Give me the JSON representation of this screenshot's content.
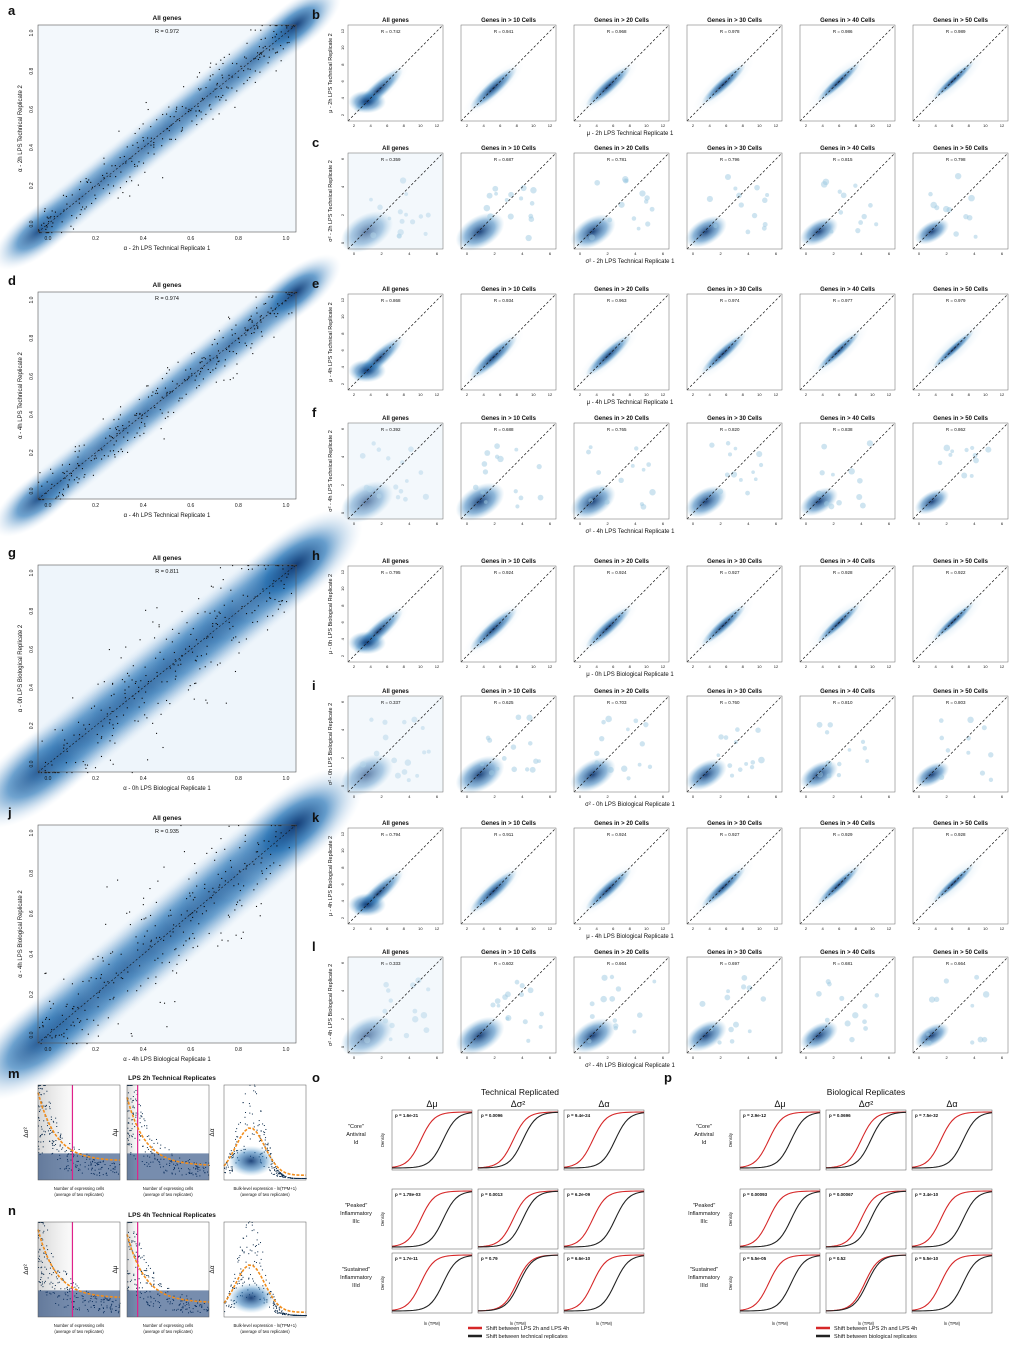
{
  "colors": {
    "density_dark": "#08306b",
    "density_mid": "#2171b5",
    "density_light": "#c6dbef",
    "point": "#0d1b2a",
    "lps_shift": "#d62728",
    "rep_shift": "#222222",
    "cutoff_line": "#e0218a",
    "fit_line": "#f28e1c"
  },
  "chart_data": {
    "type": "scatter",
    "grid": false,
    "panels_left": [
      {
        "label": "a",
        "title": "All genes",
        "r": "R = 0.972",
        "xlabel": "α - 2h LPS Technical Replicate 1",
        "ylabel": "α - 2h LPS Technical Replicate 2",
        "xlim": [
          0,
          1
        ],
        "ylim": [
          0,
          1
        ]
      },
      {
        "label": "d",
        "title": "All genes",
        "r": "R = 0.974",
        "xlabel": "α - 4h LPS Technical Replicate 1",
        "ylabel": "α - 4h LPS Technical Replicate 2",
        "xlim": [
          0,
          1
        ],
        "ylim": [
          0,
          1
        ]
      },
      {
        "label": "g",
        "title": "All genes",
        "r": "R = 0.811",
        "xlabel": "α - 0h LPS Biological Replicate 1",
        "ylabel": "α - 0h LPS Biological Replicate 2",
        "xlim": [
          0,
          1
        ],
        "ylim": [
          0,
          1
        ]
      },
      {
        "label": "j",
        "title": "All genes",
        "r": "R = 0.935",
        "xlabel": "α - 4h LPS Biological Replicate 1",
        "ylabel": "α - 4h LPS Biological Replicate 2",
        "xlim": [
          0,
          1
        ],
        "ylim": [
          0,
          1
        ]
      }
    ],
    "left_ticks": [
      "0.0",
      "0.2",
      "0.4",
      "0.6",
      "0.8",
      "1.0"
    ],
    "mu_ticks": [
      "2",
      "4",
      "6",
      "8",
      "10",
      "12"
    ],
    "sigma_ticks": [
      "0",
      "2",
      "4",
      "6"
    ],
    "row_groups": [
      {
        "label": "b",
        "xlabel": "μ - 2h LPS Technical Replicate 1",
        "ylabel": "μ - 2h LPS Technical Replicate 2",
        "titles": [
          "All genes",
          "Genes in > 10 Cells",
          "Genes in > 20 Cells",
          "Genes in > 30 Cells",
          "Genes in > 40 Cells",
          "Genes in > 50 Cells"
        ],
        "r": [
          "R = 0.742",
          "R = 0.941",
          "R = 0.968",
          "R = 0.978",
          "R = 0.986",
          "R = 0.989"
        ]
      },
      {
        "label": "c",
        "xlabel": "σ² - 2h LPS Technical Replicate 1",
        "ylabel": "σ² - 2h LPS Technical Replicate 2",
        "titles": [
          "All genes",
          "Genes in > 10 Cells",
          "Genes in > 20 Cells",
          "Genes in > 30 Cells",
          "Genes in > 40 Cells",
          "Genes in > 50 Cells"
        ],
        "r": [
          "R = 0.359",
          "R = 0.687",
          "R = 0.781",
          "R = 0.796",
          "R = 0.815",
          "R = 0.798"
        ]
      },
      {
        "label": "e",
        "xlabel": "μ - 4h LPS Technical Replicate 1",
        "ylabel": "μ - 4h LPS Technical Replicate 2",
        "titles": [
          "All genes",
          "Genes in > 10 Cells",
          "Genes in > 20 Cells",
          "Genes in > 30 Cells",
          "Genes in > 40 Cells",
          "Genes in > 50 Cells"
        ],
        "r": [
          "R = 0.868",
          "R = 0.934",
          "R = 0.963",
          "R = 0.974",
          "R = 0.977",
          "R = 0.979"
        ]
      },
      {
        "label": "f",
        "xlabel": "σ² - 4h LPS Technical Replicate 1",
        "ylabel": "σ² - 4h LPS Technical Replicate 2",
        "titles": [
          "All genes",
          "Genes in > 10 Cells",
          "Genes in > 20 Cells",
          "Genes in > 30 Cells",
          "Genes in > 40 Cells",
          "Genes in > 50 Cells"
        ],
        "r": [
          "R = 0.392",
          "R = 0.688",
          "R = 0.765",
          "R = 0.820",
          "R = 0.838",
          "R = 0.862"
        ]
      },
      {
        "label": "h",
        "xlabel": "μ - 0h LPS Biological Replicate 1",
        "ylabel": "μ - 0h LPS Biological Replicate 2",
        "titles": [
          "All genes",
          "Genes in > 10 Cells",
          "Genes in > 20 Cells",
          "Genes in > 30 Cells",
          "Genes in > 40 Cells",
          "Genes in > 50 Cells"
        ],
        "r": [
          "R = 0.795",
          "R = 0.924",
          "R = 0.924",
          "R = 0.927",
          "R = 0.928",
          "R = 0.922"
        ]
      },
      {
        "label": "i",
        "xlabel": "σ² - 0h LPS Biological Replicate 1",
        "ylabel": "σ² - 0h LPS Biological Replicate 2",
        "titles": [
          "All genes",
          "Genes in > 10 Cells",
          "Genes in > 20 Cells",
          "Genes in > 30 Cells",
          "Genes in > 40 Cells",
          "Genes in > 50 Cells"
        ],
        "r": [
          "R = 0.337",
          "R = 0.625",
          "R = 0.703",
          "R = 0.760",
          "R = 0.810",
          "R = 0.803"
        ]
      },
      {
        "label": "k",
        "xlabel": "μ - 4h LPS Biological Replicate 1",
        "ylabel": "μ - 4h LPS Biological Replicate 2",
        "titles": [
          "All genes",
          "Genes in > 10 Cells",
          "Genes in > 20 Cells",
          "Genes in > 30 Cells",
          "Genes in > 40 Cells",
          "Genes in > 50 Cells"
        ],
        "r": [
          "R = 0.794",
          "R = 0.911",
          "R = 0.924",
          "R = 0.927",
          "R = 0.929",
          "R = 0.928"
        ]
      },
      {
        "label": "l",
        "xlabel": "σ² - 4h LPS Biological Replicate 1",
        "ylabel": "σ² - 4h LPS Biological Replicate 2",
        "titles": [
          "All genes",
          "Genes in > 10 Cells",
          "Genes in > 20 Cells",
          "Genes in > 30 Cells",
          "Genes in > 40 Cells",
          "Genes in > 50 Cells"
        ],
        "r": [
          "R = 0.333",
          "R = 0.602",
          "R = 0.664",
          "R = 0.697",
          "R = 0.681",
          "R = 0.664"
        ]
      }
    ],
    "bottom_left": [
      {
        "label": "m",
        "title": "LPS 2h Technical Replicates",
        "ylabels": [
          "Δσ²",
          "Δμ",
          "Δα"
        ],
        "xlabels": [
          "Number of expressing cells (average of two replicates)",
          "Number of expressing cells (average of two replicates)",
          "Bulk-level expression - ln(TPM+1) (average of two replicates)"
        ]
      },
      {
        "label": "n",
        "title": "LPS 4h Technical Replicates",
        "ylabels": [
          "Δσ²",
          "Δμ",
          "Δα"
        ],
        "xlabels": [
          "Number of expressing cells (average of two replicates)",
          "Number of expressing cells (average of two replicates)",
          "Bulk-level expression - ln(TPM+1) (average of two replicates)"
        ]
      }
    ],
    "cdf_sections": [
      {
        "label": "o",
        "title": "Technical Replicated",
        "cols": [
          "Δμ",
          "Δσ²",
          "Δα"
        ],
        "rows": [
          "\"Core\" Antiviral Id",
          "\"Peaked\" Inflammatory IIIc",
          "\"Sustained\" Inflammatory IIId"
        ],
        "pvals": [
          [
            "p = 1.6e-21",
            "p = 0.0096",
            "p = 9.4e-24"
          ],
          [
            "p = 1.78e-03",
            "p = 0.0013",
            "p = 6.2e-09"
          ],
          [
            "p = 1.7e-11",
            "p = 0.79",
            "p = 6.6e-10"
          ]
        ],
        "ylabel": "Density",
        "xlabel_last": "ln (TPM)",
        "legend": [
          "Shift between LPS 2h and LPS 4h",
          "Shift between technical replicates"
        ]
      },
      {
        "label": "p",
        "title": "Biological Replicates",
        "cols": [
          "Δμ",
          "Δσ²",
          "Δα"
        ],
        "rows": [
          "\"Core\" Antiviral Id",
          "\"Peaked\" Inflammatory IIIc",
          "\"Sustained\" Inflammatory IIId"
        ],
        "pvals": [
          [
            "p = 2.9e-12",
            "p = 0.0696",
            "p = 7.5e-32"
          ],
          [
            "p = 0.00093",
            "p = 0.00067",
            "p = 3.4e-10"
          ],
          [
            "p = 5.5e-05",
            "p = 0.52",
            "p = 5.5e-10"
          ]
        ],
        "ylabel": "Density",
        "xlabel_last": "ln (TPM)",
        "legend": [
          "Shift between LPS 2h and LPS 4h",
          "Shift between biological replicates"
        ]
      }
    ]
  }
}
